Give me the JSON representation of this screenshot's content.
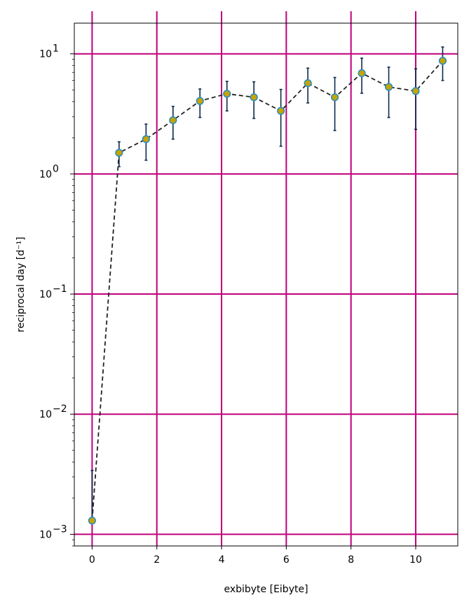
{
  "chart_data": {
    "type": "scatter",
    "title": "",
    "xlabel": "exbibyte [Eibyte]",
    "ylabel": "reciprocal day [d⁻¹]",
    "x_scale": "linear",
    "y_scale": "log",
    "xlim": [
      -0.55,
      11.3
    ],
    "ylim": [
      0.0008,
      18
    ],
    "x_ticks": [
      0,
      2,
      4,
      6,
      8,
      10
    ],
    "x_tick_labels": [
      "0",
      "2",
      "4",
      "6",
      "8",
      "10"
    ],
    "y_ticks": [
      0.001,
      0.01,
      0.1,
      1,
      10
    ],
    "y_tick_labels": [
      {
        "base": "10",
        "exp": "−3"
      },
      {
        "base": "10",
        "exp": "−2"
      },
      {
        "base": "10",
        "exp": "−1"
      },
      {
        "base": "10",
        "exp": "0"
      },
      {
        "base": "10",
        "exp": "1"
      }
    ],
    "grid": true,
    "grid_color": "#c0007a",
    "line_style": "dashed",
    "line_color": "#222222",
    "marker_face_color": "#c8a400",
    "marker_edge_color": "#2a8fc0",
    "errorbar_color": "#0d2a4a",
    "series": [
      {
        "x": [
          0,
          0.833,
          1.667,
          2.5,
          3.333,
          4.167,
          5.0,
          5.833,
          6.667,
          7.5,
          8.333,
          9.167,
          10.0,
          10.833
        ],
        "y": [
          0.0013,
          1.5,
          1.95,
          2.8,
          4.05,
          4.65,
          4.35,
          3.35,
          5.7,
          4.35,
          6.9,
          5.3,
          4.9,
          8.75
        ],
        "y_err_lower": [
          0.0013,
          1.15,
          1.3,
          1.95,
          2.95,
          3.35,
          2.9,
          1.7,
          3.9,
          2.3,
          4.7,
          2.95,
          2.35,
          6.0
        ],
        "y_err_upper": [
          0.0034,
          1.85,
          2.6,
          3.65,
          5.1,
          5.9,
          5.85,
          5.05,
          7.6,
          6.35,
          9.2,
          7.75,
          7.5,
          11.4
        ]
      }
    ]
  }
}
